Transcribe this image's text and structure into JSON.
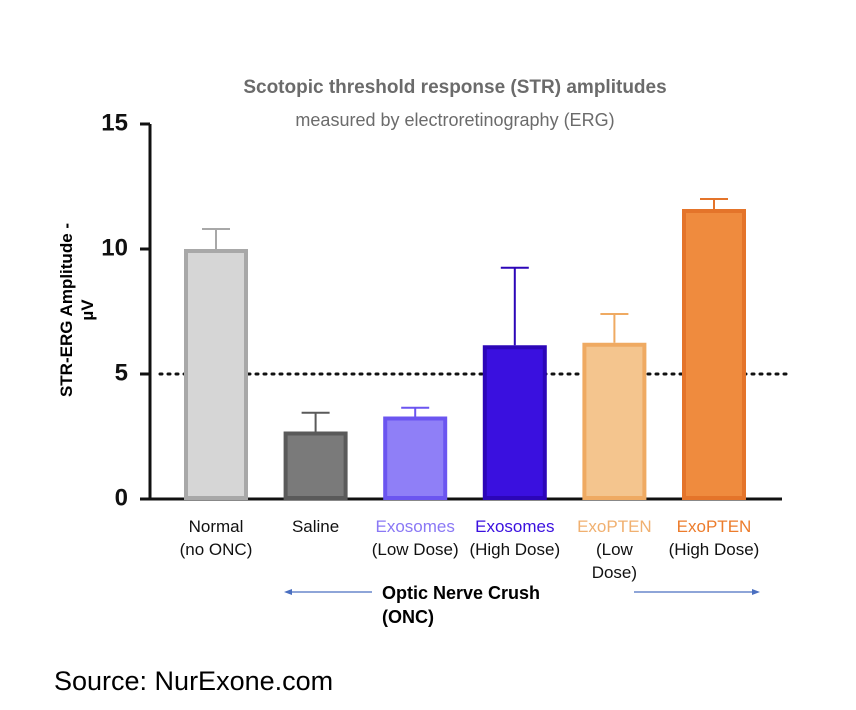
{
  "chart_data": {
    "type": "bar",
    "title": "Scotopic threshold response (STR) amplitudes",
    "subtitle": "measured by electroretinography (ERG)",
    "y_label": "STR-ERG Amplitude -\nµV",
    "categories": [
      "Normal\n(no ONC)",
      "Saline",
      "Exosomes\n(Low Dose)",
      "Exosomes\n(High Dose)",
      "ExoPTEN\n(Low\nDose)",
      "ExoPTEN\n(High Dose)"
    ],
    "values": [
      10.0,
      2.7,
      3.3,
      6.15,
      6.25,
      11.6
    ],
    "errors": [
      0.8,
      0.75,
      0.35,
      3.1,
      1.15,
      0.4
    ],
    "colors": [
      "#d6d6d6",
      "#7a7a7a",
      "#8f7ff7",
      "#3a10df",
      "#f4c58e",
      "#ef8b3e"
    ],
    "edge_colors": [
      "#a8a8a8",
      "#5a5a5a",
      "#6b55f0",
      "#2c06b8",
      "#efaa62",
      "#e4742a"
    ],
    "label_colors": [
      "#111111",
      "#111111",
      "#8a78f5",
      "#3a10df",
      "#f0b070",
      "#ec7c2c"
    ],
    "ylim": [
      0,
      15
    ],
    "yticks": [
      0,
      5,
      10,
      15
    ],
    "reference_line": 5,
    "annotation": "Optic Nerve Crush\n(ONC)",
    "source": "Source: NurExone.com"
  }
}
